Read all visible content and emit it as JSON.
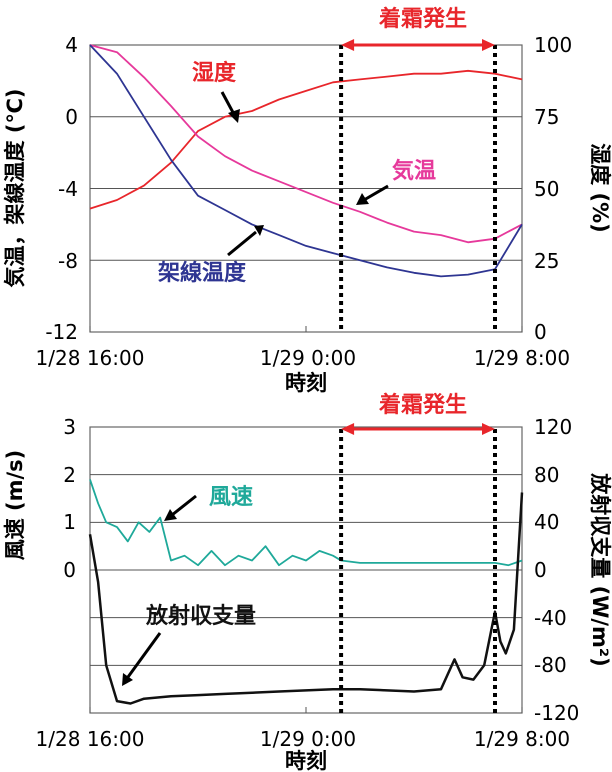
{
  "chart_data": [
    {
      "type": "line",
      "xlabel": "時刻",
      "x_ticks": [
        "1/28 16:00",
        "1/29 0:00",
        "1/29 8:00"
      ],
      "y_left_label": "気温，架線温度 (℃)",
      "y_left_ticks": [
        "4",
        "0",
        "-4",
        "-8",
        "-12"
      ],
      "y_left_lim": [
        -12,
        4
      ],
      "y_right_label": "湿度 (%)",
      "y_right_ticks": [
        "100",
        "75",
        "50",
        "25",
        "0"
      ],
      "y_right_lim": [
        0,
        100
      ],
      "x_hours_lim": [
        16,
        32
      ],
      "frost_label": "着霜発生",
      "frost_start_hour": 25.3,
      "frost_end_hour": 31.0,
      "grid": true,
      "series": [
        {
          "name": "湿度",
          "axis": "right",
          "color": "#e8262b",
          "x": [
            16,
            17,
            18,
            19,
            20,
            21,
            22,
            23,
            24,
            25,
            26,
            27,
            28,
            29,
            30,
            31,
            32
          ],
          "values": [
            43,
            46,
            51,
            59,
            70,
            75,
            77,
            81,
            84,
            87,
            88,
            89,
            90,
            90,
            91,
            90,
            88
          ]
        },
        {
          "name": "気温",
          "axis": "left",
          "color": "#e6399b",
          "x": [
            16,
            17,
            18,
            19,
            20,
            21,
            22,
            23,
            24,
            25,
            26,
            27,
            28,
            29,
            30,
            31,
            32
          ],
          "values": [
            4.8,
            3.6,
            2.2,
            0.6,
            -1.1,
            -2.2,
            -3.0,
            -3.6,
            -4.2,
            -4.8,
            -5.3,
            -5.9,
            -6.4,
            -6.6,
            -7.0,
            -6.8,
            -6.0
          ]
        },
        {
          "name": "架線温度",
          "axis": "left",
          "color": "#2e3592",
          "x": [
            16,
            17,
            18,
            19,
            20,
            21,
            22,
            23,
            24,
            25,
            26,
            27,
            28,
            29,
            30,
            31,
            32
          ],
          "values": [
            4.8,
            2.4,
            0.0,
            -2.4,
            -4.4,
            -5.2,
            -6.0,
            -6.6,
            -7.2,
            -7.6,
            -8.0,
            -8.4,
            -8.7,
            -8.9,
            -8.8,
            -8.5,
            -6.0
          ]
        }
      ],
      "annotations": [
        "湿度",
        "気温",
        "架線温度"
      ]
    },
    {
      "type": "line",
      "xlabel": "時刻",
      "x_ticks": [
        "1/28 16:00",
        "1/29 0:00",
        "1/29 8:00"
      ],
      "y_left_label": "風速 (m/s)",
      "y_left_ticks": [
        "3",
        "2",
        "1",
        "0"
      ],
      "y_left_lim": [
        -3,
        3
      ],
      "y_right_label": "放射収支量 (W/m²)",
      "y_right_ticks": [
        "120",
        "80",
        "40",
        "0",
        "-40",
        "-80",
        "-120"
      ],
      "y_right_lim": [
        -120,
        120
      ],
      "x_hours_lim": [
        16,
        32
      ],
      "frost_label": "着霜発生",
      "frost_start_hour": 25.3,
      "frost_end_hour": 31.0,
      "grid": true,
      "series": [
        {
          "name": "風速",
          "axis": "left",
          "color": "#1fa99a",
          "x": [
            16,
            16.3,
            16.6,
            17,
            17.4,
            17.8,
            18.2,
            18.6,
            19,
            19.5,
            20,
            20.5,
            21,
            21.5,
            22,
            22.5,
            23,
            23.5,
            24,
            24.5,
            25,
            25.3,
            26,
            27,
            28,
            29,
            30,
            31,
            31.5,
            32
          ],
          "values": [
            1.9,
            1.4,
            1.0,
            0.9,
            0.6,
            1.0,
            0.8,
            1.1,
            0.2,
            0.3,
            0.1,
            0.4,
            0.1,
            0.3,
            0.2,
            0.5,
            0.1,
            0.3,
            0.2,
            0.4,
            0.3,
            0.2,
            0.15,
            0.15,
            0.15,
            0.15,
            0.15,
            0.15,
            0.1,
            0.2
          ]
        },
        {
          "name": "放射収支量",
          "axis": "right",
          "color": "#111111",
          "x": [
            16,
            16.3,
            16.6,
            17,
            17.5,
            18,
            19,
            20,
            21,
            22,
            23,
            24,
            25,
            26,
            27,
            28,
            29,
            29.5,
            29.8,
            30.2,
            30.6,
            31,
            31.2,
            31.4,
            31.7,
            32
          ],
          "values": [
            30,
            -10,
            -80,
            -110,
            -112,
            -108,
            -106,
            -105,
            -104,
            -103,
            -102,
            -101,
            -100,
            -100,
            -101,
            -102,
            -100,
            -75,
            -90,
            -92,
            -80,
            -35,
            -60,
            -70,
            -50,
            65
          ]
        }
      ],
      "annotations": [
        "風速",
        "放射収支量"
      ]
    }
  ]
}
